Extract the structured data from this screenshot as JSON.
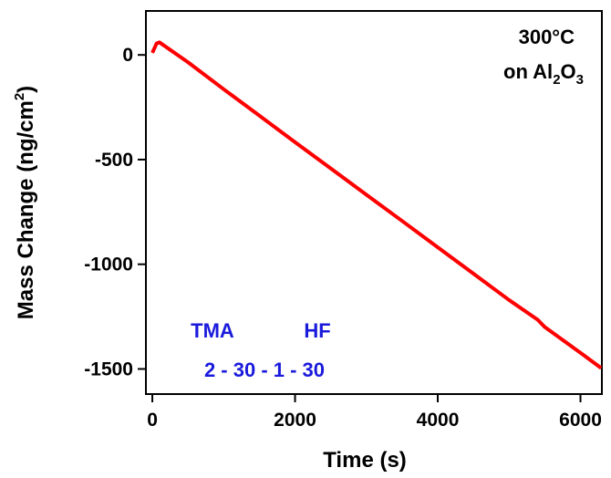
{
  "chart_data": {
    "type": "line",
    "y_label": [
      "Mass Change (ng/cm",
      "2",
      ")"
    ],
    "x_label": "Time (s)",
    "annotations": {
      "temperature": "300°C",
      "substrate": [
        "on Al",
        "2",
        "O",
        "3"
      ],
      "precursor_a": "TMA",
      "precursor_b": "HF",
      "sequence": "2 - 30 - 1 - 30"
    },
    "x": [
      0,
      60,
      100,
      500,
      1000,
      1500,
      2000,
      2500,
      3000,
      3500,
      4000,
      4500,
      5000,
      5400,
      5500,
      6000,
      6290
    ],
    "series": [
      {
        "name": "Mass change",
        "color": "#ff0000",
        "values": [
          10,
          55,
          60,
          -35,
          -164,
          -290,
          -417,
          -542,
          -668,
          -793,
          -919,
          -1045,
          -1171,
          -1265,
          -1300,
          -1423,
          -1496
        ]
      }
    ],
    "xlim": [
      -90,
      6300
    ],
    "ylim": [
      -1620,
      210
    ],
    "xticks": [
      0,
      2000,
      4000,
      6000
    ],
    "yticks": [
      0,
      -500,
      -1000,
      -1500
    ]
  }
}
